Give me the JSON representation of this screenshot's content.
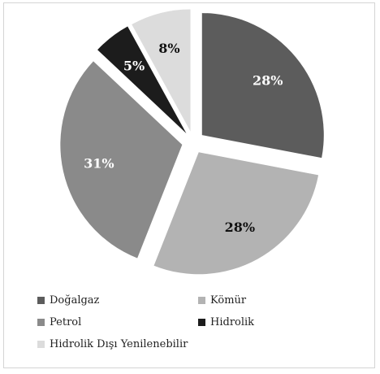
{
  "chart_data": {
    "type": "pie",
    "categories": [
      "Doğalgaz",
      "Kömür",
      "Petrol",
      "Hidrolik",
      "Hidrolik Dışı Yenilenebilir"
    ],
    "values": [
      28,
      28,
      31,
      5,
      8
    ],
    "labels": [
      "28%",
      "28%",
      "31%",
      "5%",
      "8%"
    ],
    "colors": [
      "#5c5c5c",
      "#b3b3b3",
      "#8a8a8a",
      "#1c1c1c",
      "#dcdcdc"
    ],
    "label_colors": [
      "#ffffff",
      "#111111",
      "#ffffff",
      "#ffffff",
      "#111111"
    ],
    "exploded": true,
    "legend": "bottom"
  }
}
